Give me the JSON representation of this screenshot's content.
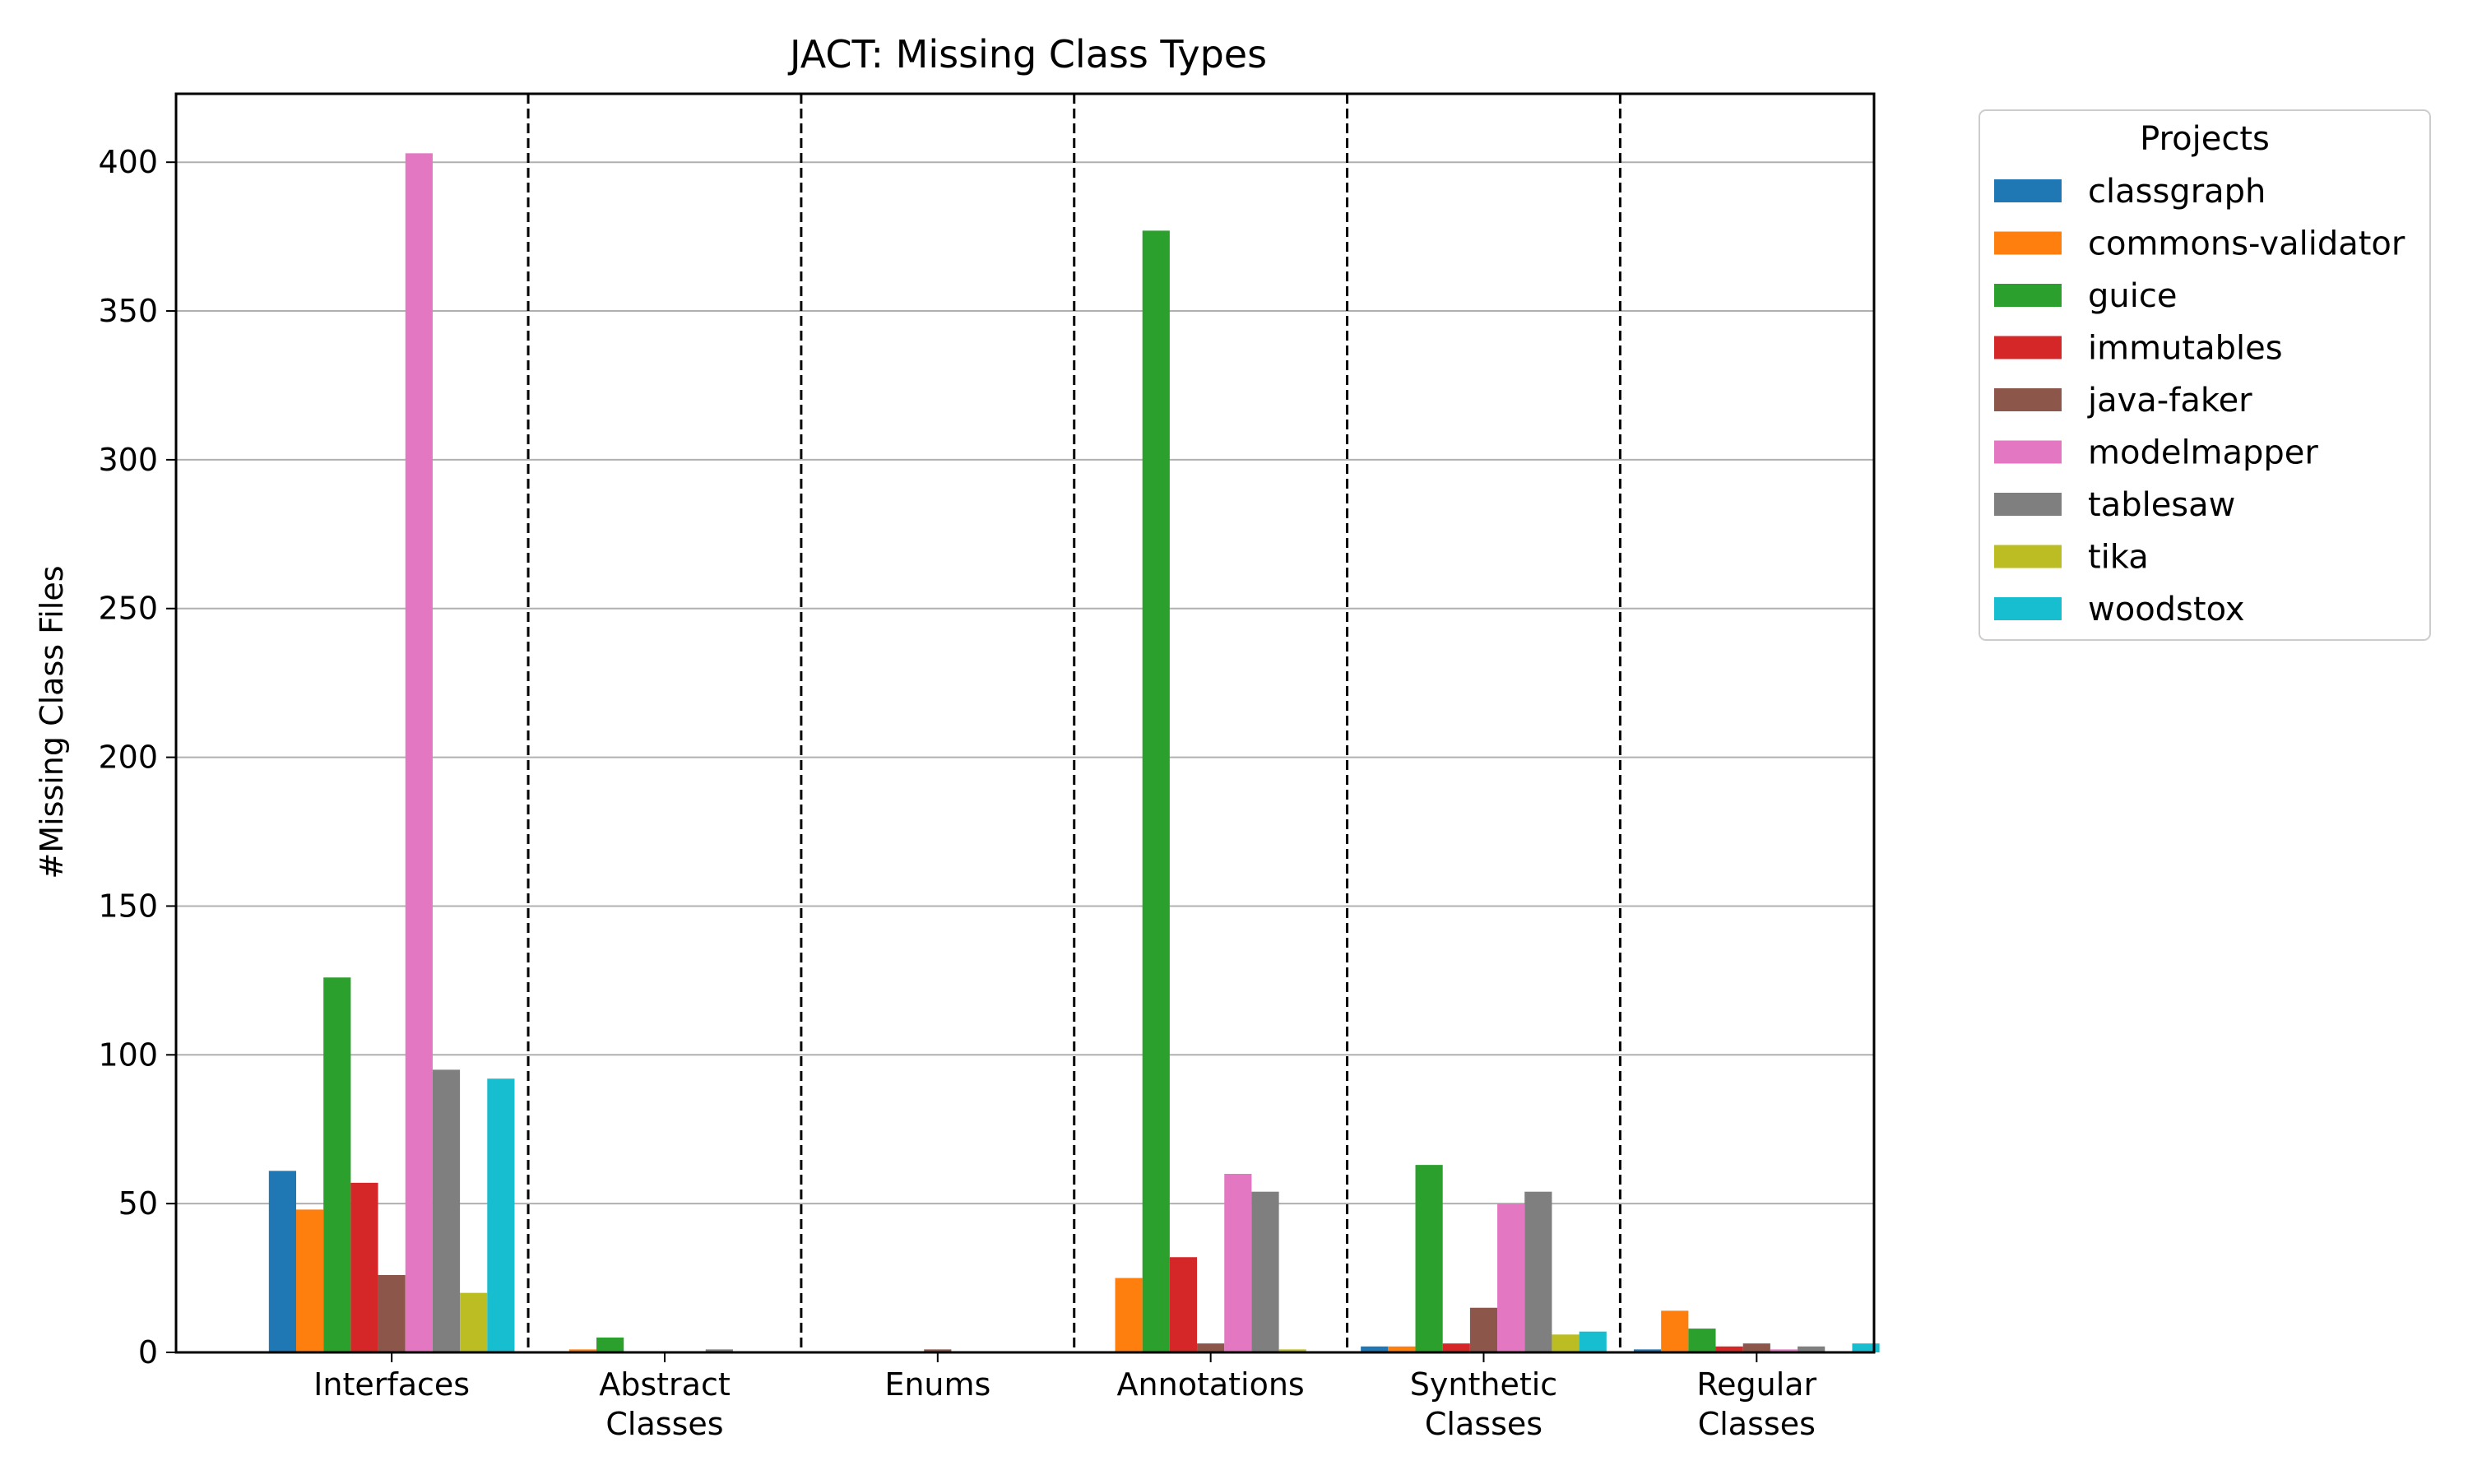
{
  "chart_data": {
    "type": "bar",
    "title": "JACT: Missing Class Types",
    "xlabel": "",
    "ylabel": "#Missing Class Files",
    "ylim": [
      0,
      423
    ],
    "yticks": [
      0,
      50,
      100,
      150,
      200,
      250,
      300,
      350,
      400
    ],
    "grid": "horizontal",
    "group_separators": "dashed",
    "categories": [
      "Interfaces",
      "Abstract\nClasses",
      "Enums",
      "Annotations",
      "Synthetic\nClasses",
      "Regular\nClasses"
    ],
    "legend": {
      "title": "Projects",
      "placement": "outside-top-right"
    },
    "series": [
      {
        "name": "classgraph",
        "color": "#1f77b4",
        "values": [
          61,
          0,
          0,
          0,
          2,
          1
        ]
      },
      {
        "name": "commons-validator",
        "color": "#ff7f0e",
        "values": [
          48,
          1,
          0,
          25,
          2,
          14
        ]
      },
      {
        "name": "guice",
        "color": "#2ca02c",
        "values": [
          126,
          5,
          0,
          377,
          63,
          8
        ]
      },
      {
        "name": "immutables",
        "color": "#d62728",
        "values": [
          57,
          0,
          0,
          32,
          3,
          2
        ]
      },
      {
        "name": "java-faker",
        "color": "#8c564b",
        "values": [
          26,
          0,
          1,
          3,
          15,
          3
        ]
      },
      {
        "name": "modelmapper",
        "color": "#e377c2",
        "values": [
          403,
          0,
          0,
          60,
          50,
          1
        ]
      },
      {
        "name": "tablesaw",
        "color": "#7f7f7f",
        "values": [
          95,
          1,
          0,
          54,
          54,
          2
        ]
      },
      {
        "name": "tika",
        "color": "#bcbd22",
        "values": [
          20,
          0,
          0,
          1,
          6,
          0
        ]
      },
      {
        "name": "woodstox",
        "color": "#17becf",
        "values": [
          92,
          0,
          0,
          0,
          7,
          3
        ]
      }
    ]
  }
}
